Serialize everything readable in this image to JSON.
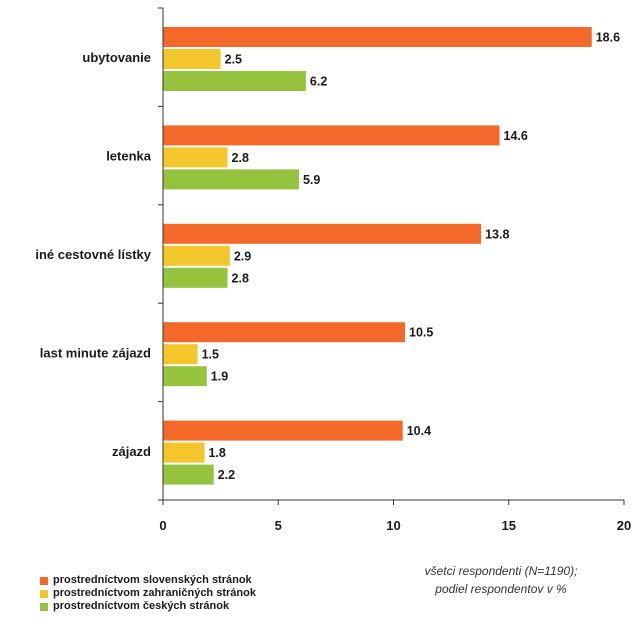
{
  "chart_data": {
    "type": "bar",
    "orientation": "horizontal",
    "categories": [
      "ubytovanie",
      "letenka",
      "iné cestovné lístky",
      "last minute zájazd",
      "zájazd"
    ],
    "series": [
      {
        "name": "prostredníctvom slovenských stránok",
        "color": "#f4692a",
        "values": [
          18.6,
          14.6,
          13.8,
          10.5,
          10.4
        ]
      },
      {
        "name": "prostredníctvom zahraničných stránok",
        "color": "#f3c62c",
        "values": [
          2.5,
          2.8,
          2.9,
          1.5,
          1.8
        ]
      },
      {
        "name": "prostredníctvom českých stránok",
        "color": "#96c33e",
        "values": [
          6.2,
          5.9,
          2.8,
          1.9,
          2.2
        ]
      }
    ],
    "xlim": [
      0,
      20
    ],
    "xticks": [
      0,
      5,
      10,
      15,
      20
    ],
    "grid": false,
    "legend_position": "bottom-left",
    "note": [
      "všetci respondenti (N=1190);",
      "podiel respondentov v %"
    ]
  }
}
